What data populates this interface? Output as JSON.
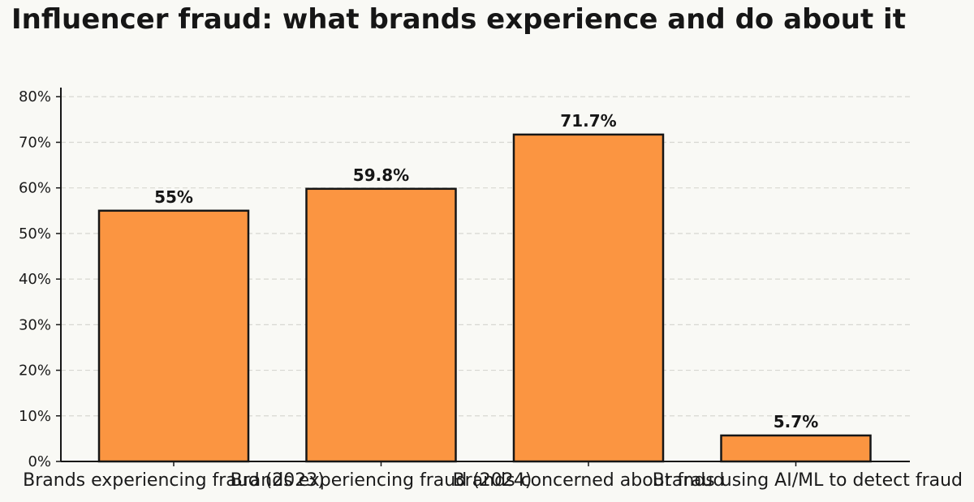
{
  "chart_data": {
    "type": "bar",
    "title": "Influencer fraud: what brands experience and do about it",
    "categories": [
      "Brands experiencing fraud (2023)",
      "Brands experiencing fraud (2024)",
      "Brands concerned about fraud",
      "Brands using AI/ML to detect fraud"
    ],
    "values": [
      55,
      59.8,
      71.7,
      5.7
    ],
    "value_labels": [
      "55%",
      "59.8%",
      "71.7%",
      "5.7%"
    ],
    "ylim": [
      0,
      82
    ],
    "yticks": [
      0,
      10,
      20,
      30,
      40,
      50,
      60,
      70,
      80
    ],
    "ytick_labels": [
      "0%",
      "10%",
      "20%",
      "30%",
      "40%",
      "50%",
      "60%",
      "70%",
      "80%"
    ],
    "xlabel": "",
    "ylabel": "",
    "grid": "horizontal dashed",
    "legend": "none",
    "colors": {
      "bar_fill": "#fb9541",
      "bar_edge": "#161616",
      "grid": "#d7d7d2",
      "axis": "#161616",
      "background": "#f9f9f5"
    }
  }
}
